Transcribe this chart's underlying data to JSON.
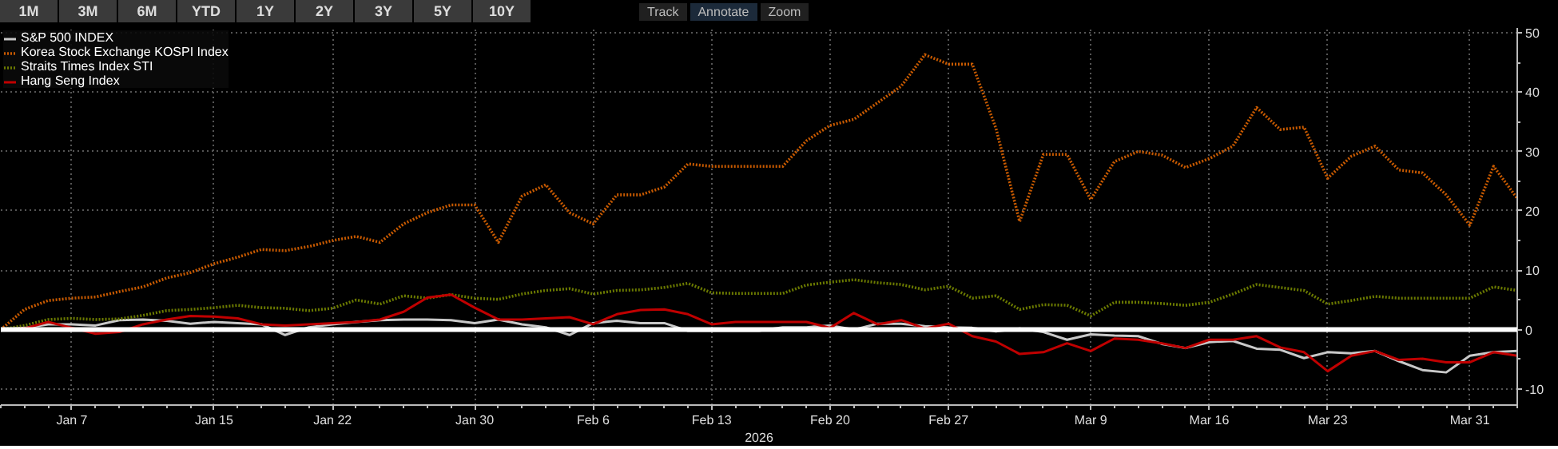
{
  "chart_data": {
    "type": "line",
    "xlabel": "2026",
    "annotations": [
      "1M",
      "3M",
      "6M",
      "YTD",
      "1Y",
      "2Y",
      "3Y",
      "5Y",
      "10Y",
      "Track",
      "Annotate",
      "Zoom"
    ],
    "categories": [
      null,
      null,
      null,
      "Jan 7",
      null,
      null,
      null,
      null,
      null,
      "Jan 15",
      null,
      null,
      null,
      null,
      "Jan 22",
      null,
      null,
      null,
      null,
      null,
      "Jan 30",
      null,
      null,
      null,
      null,
      "Feb 6",
      null,
      null,
      null,
      null,
      "Feb 13",
      null,
      null,
      null,
      null,
      "Feb 20",
      null,
      null,
      null,
      null,
      "Feb 27",
      null,
      null,
      null,
      null,
      null,
      "Mar 9",
      null,
      null,
      null,
      null,
      "Mar 16",
      null,
      null,
      null,
      null,
      "Mar 23",
      null,
      null,
      null,
      null,
      null,
      "Mar 31",
      null,
      null
    ],
    "series": [
      {
        "name": "S&P 500 INDEX",
        "color": "#c8c8c8",
        "line_style": "solid",
        "values": [
          0,
          0.3,
          0.9,
          0.9,
          0.7,
          1.6,
          1.7,
          1.5,
          1.0,
          1.3,
          1.1,
          0.9,
          -0.9,
          0.4,
          0.9,
          1.3,
          1.6,
          1.7,
          1.7,
          1.6,
          1.1,
          1.7,
          0.9,
          0.4,
          -0.9,
          1.1,
          1.5,
          1.1,
          1.1,
          -0.2,
          -0.2,
          -0.2,
          -0.2,
          0.4,
          0.4,
          0.7,
          0,
          1.0,
          1.0,
          0.6,
          0.4,
          0.3,
          -0.3,
          0.2,
          -0.4,
          -1.7,
          -0.8,
          -1.0,
          -1.1,
          -2.4,
          -3.1,
          -2.1,
          -1.9,
          -3.2,
          -3.4,
          -4.8,
          -3.8,
          -4.0,
          -3.6,
          -5.3,
          -6.8,
          -7.2,
          -4.4,
          -3.8,
          -3.6
        ]
      },
      {
        "name": "Korea Stock Exchange KOSPI Index",
        "color": "#c85a00",
        "line_style": "dotted",
        "values": [
          0,
          3.4,
          4.9,
          5.3,
          5.5,
          6.4,
          7.2,
          8.7,
          9.6,
          11.1,
          12.2,
          13.5,
          13.3,
          14,
          15,
          15.7,
          14.7,
          17.8,
          19.7,
          21,
          21,
          14.7,
          22.5,
          24.4,
          19.7,
          17.8,
          22.7,
          22.7,
          24,
          27.9,
          27.5,
          27.5,
          27.5,
          27.5,
          31.8,
          34.4,
          35.4,
          38.2,
          41,
          46.3,
          44.7,
          44.7,
          33.9,
          18.2,
          29.5,
          29.5,
          21.9,
          28.3,
          30,
          29.4,
          27.3,
          28.8,
          30.9,
          37.4,
          33.7,
          34.1,
          25.5,
          29.2,
          30.9,
          26.9,
          26.4,
          22.7,
          17.6,
          27.5,
          22.1
        ]
      },
      {
        "name": "Straits Times Index STI",
        "color": "#6b7a00",
        "line_style": "dotted",
        "values": [
          0,
          0.7,
          1.7,
          1.9,
          1.7,
          1.8,
          2.4,
          3.2,
          3.4,
          3.7,
          4.1,
          3.7,
          3.6,
          3.2,
          3.6,
          5.0,
          4.3,
          5.7,
          5.3,
          5.9,
          5.3,
          5.1,
          6.0,
          6.6,
          6.9,
          6.0,
          6.6,
          6.7,
          7.1,
          7.8,
          6.2,
          6.1,
          6.1,
          6.1,
          7.5,
          8.0,
          8.4,
          7.9,
          7.6,
          6.7,
          7.3,
          5.3,
          5.7,
          3.4,
          4.2,
          4.1,
          2.3,
          4.6,
          4.6,
          4.4,
          4.1,
          4.6,
          6.0,
          7.6,
          7.1,
          6.6,
          4.3,
          4.9,
          5.6,
          5.3,
          5.3,
          5.3,
          5.3,
          7.2,
          6.6
        ]
      },
      {
        "name": "Hang Seng Index",
        "color": "#c00000",
        "line_style": "solid",
        "values": [
          0,
          0.2,
          1.3,
          0.3,
          -0.7,
          -0.4,
          0.9,
          1.7,
          2.3,
          2.2,
          1.9,
          0.9,
          0.7,
          0.9,
          1.1,
          1.3,
          1.7,
          3.0,
          5.4,
          5.9,
          3.7,
          1.7,
          1.7,
          1.9,
          2.1,
          0.9,
          2.6,
          3.3,
          3.4,
          2.6,
          0.9,
          1.3,
          1.3,
          1.3,
          1.3,
          0.3,
          2.8,
          0.9,
          1.6,
          0.2,
          1.0,
          -1.1,
          -2.0,
          -4.1,
          -3.8,
          -2.3,
          -3.6,
          -1.5,
          -1.7,
          -2.3,
          -3.1,
          -1.7,
          -1.7,
          -1.1,
          -3.0,
          -3.8,
          -7.0,
          -4.4,
          -3.6,
          -5.1,
          -4.9,
          -5.5,
          -5.5,
          -3.8,
          -4.4
        ]
      }
    ],
    "ylim": [
      -12.7,
      50.8
    ],
    "yticks": [
      -10,
      0,
      10,
      20,
      30,
      40,
      50
    ],
    "ref_lines": [
      {
        "axis": "y",
        "value": 0,
        "color": "#ffffff"
      }
    ],
    "grid": true,
    "legend": "top left",
    "marker": "none"
  }
}
